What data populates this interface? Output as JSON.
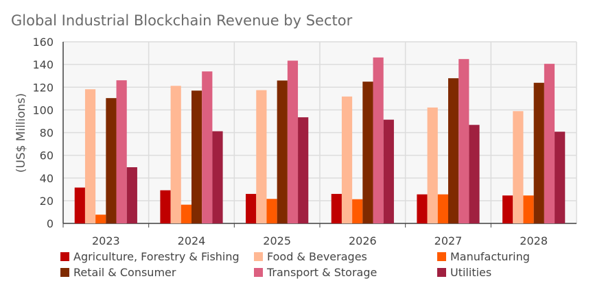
{
  "chart_data": {
    "type": "bar",
    "title": "Global Industrial Blockchain Revenue by Sector",
    "xlabel": "",
    "ylabel": "(US$ Millions)",
    "ylim": [
      0,
      160
    ],
    "yticks": [
      0,
      20,
      40,
      60,
      80,
      100,
      120,
      140,
      160
    ],
    "grid": true,
    "legend_position": "bottom",
    "categories": [
      "2023",
      "2024",
      "2025",
      "2026",
      "2027",
      "2028"
    ],
    "series": [
      {
        "name": "Agriculture, Forestry & Fishing",
        "color": "#c00000",
        "values": [
          31.6,
          29.2,
          26.0,
          26.0,
          25.6,
          24.6
        ]
      },
      {
        "name": "Food & Beverages",
        "color": "#ffb894",
        "values": [
          118.2,
          121.2,
          117.4,
          111.8,
          102.1,
          98.9
        ]
      },
      {
        "name": "Manufacturing",
        "color": "#ff5a00",
        "values": [
          7.7,
          16.5,
          21.6,
          21.3,
          25.6,
          24.6
        ]
      },
      {
        "name": "Retail & Consumer",
        "color": "#7f2a00",
        "values": [
          110.4,
          117.0,
          125.9,
          124.9,
          127.9,
          123.9
        ]
      },
      {
        "name": "Transport & Storage",
        "color": "#dc6080",
        "values": [
          126.1,
          133.9,
          143.4,
          146.2,
          144.8,
          140.6
        ]
      },
      {
        "name": "Utilities",
        "color": "#a02040",
        "values": [
          49.5,
          81.2,
          93.5,
          91.4,
          86.8,
          80.8
        ]
      }
    ]
  }
}
